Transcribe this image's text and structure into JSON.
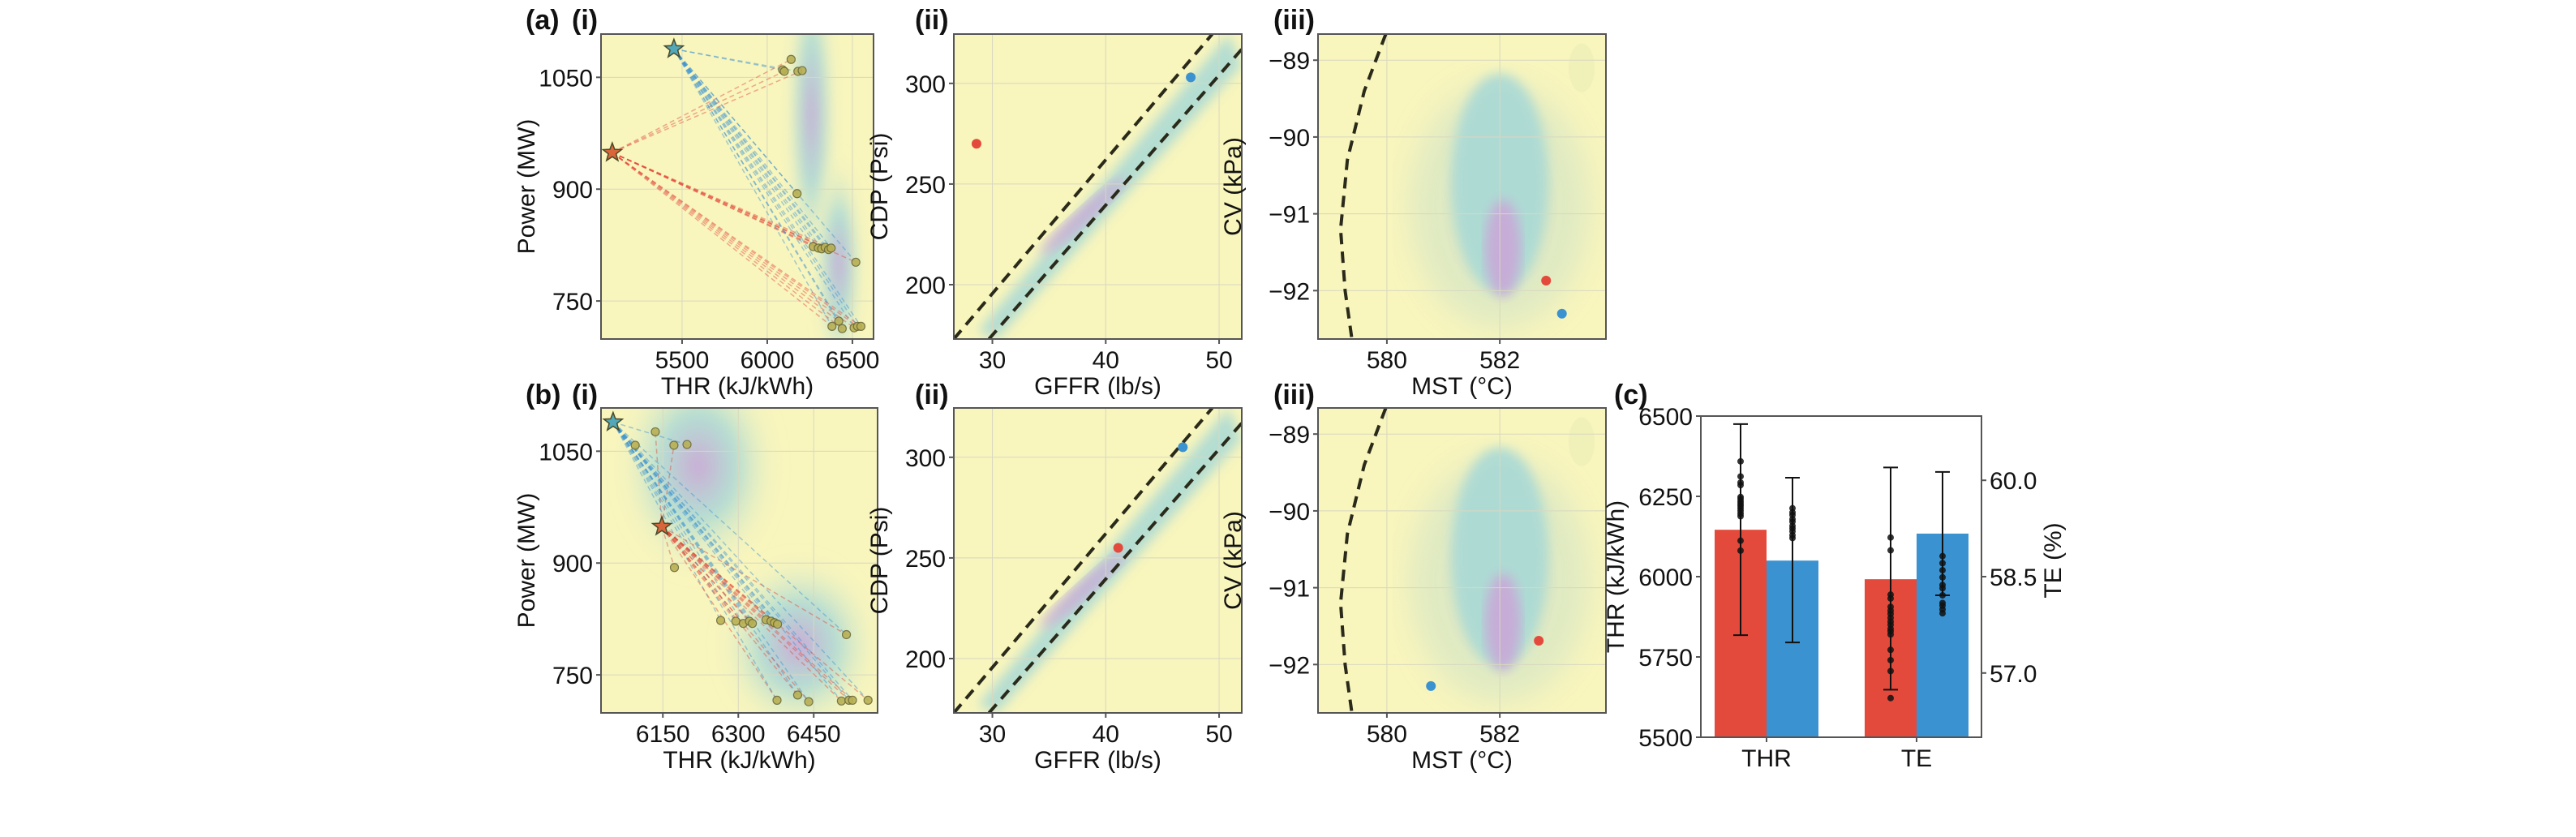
{
  "figure": {
    "panel_labels": {
      "a": "(a)",
      "b": "(b)",
      "c": "(c)",
      "i": "(i)",
      "ii": "(ii)",
      "iii": "(iii)"
    },
    "colors": {
      "red": "#e34a3b",
      "blue": "#3a92d1",
      "background_density_low": "#f8f5bd",
      "density_mid": "#a9d9d6",
      "density_high": "#c9a8d8",
      "boundary": "#2a2a1a"
    }
  },
  "chart_data": [
    {
      "id": "a-i",
      "type": "scatter",
      "panel": "(a) (i)",
      "xlabel": "THR (kJ/kWh)",
      "ylabel": "Power (MW)",
      "xlim": [
        5024,
        6624
      ],
      "ylim": [
        699,
        1108
      ],
      "xticks": [
        5500,
        6000,
        6500
      ],
      "yticks": [
        750,
        900,
        1050
      ],
      "grid": true,
      "stars": [
        {
          "series": "red",
          "x": 5090,
          "y": 949
        },
        {
          "series": "blue",
          "x": 5452,
          "y": 1088
        }
      ],
      "endpoints": [
        {
          "x": 6140,
          "y": 1074
        },
        {
          "x": 6090,
          "y": 1060
        },
        {
          "x": 6100,
          "y": 1058
        },
        {
          "x": 6180,
          "y": 1058
        },
        {
          "x": 6205,
          "y": 1059
        },
        {
          "x": 6175,
          "y": 894
        },
        {
          "x": 6270,
          "y": 823
        },
        {
          "x": 6300,
          "y": 821
        },
        {
          "x": 6320,
          "y": 820
        },
        {
          "x": 6340,
          "y": 822
        },
        {
          "x": 6360,
          "y": 819
        },
        {
          "x": 6375,
          "y": 821
        },
        {
          "x": 6520,
          "y": 802
        },
        {
          "x": 6420,
          "y": 723
        },
        {
          "x": 6380,
          "y": 716
        },
        {
          "x": 6440,
          "y": 713
        },
        {
          "x": 6510,
          "y": 714
        },
        {
          "x": 6530,
          "y": 716
        },
        {
          "x": 6550,
          "y": 716
        }
      ],
      "density": {
        "centers": [
          {
            "x": 6260,
            "y": 1000,
            "sx": 110,
            "sy": 160
          },
          {
            "x": 6420,
            "y": 800,
            "sx": 110,
            "sy": 110
          }
        ]
      }
    },
    {
      "id": "a-ii",
      "type": "scatter",
      "panel": "(a) (ii)",
      "xlabel": "GFFR (lb/s)",
      "ylabel": "CDP (Psi)",
      "xlim": [
        26.6,
        52.0
      ],
      "ylim": [
        173,
        324.5
      ],
      "xticks": [
        30,
        40,
        50
      ],
      "yticks": [
        200,
        250,
        300
      ],
      "grid": true,
      "points": [
        {
          "series": "red",
          "x": 28.6,
          "y": 270
        },
        {
          "series": "blue",
          "x": 47.5,
          "y": 303
        }
      ],
      "boundaries": [
        {
          "x": [
            26.6,
            49.4
          ],
          "y": [
            173,
            324.5
          ]
        },
        {
          "x": [
            29.7,
            52.0
          ],
          "y": [
            173,
            317
          ]
        }
      ]
    },
    {
      "id": "a-iii",
      "type": "scatter",
      "panel": "(a) (iii)",
      "xlabel": "MST (°C)",
      "ylabel": "CV (kPa)",
      "xlim": [
        578.78,
        583.88
      ],
      "ylim": [
        -92.63,
        -88.66
      ],
      "xticks": [
        580,
        582
      ],
      "xtick_labels": [
        "580",
        "582"
      ],
      "yticks": [
        -92,
        -91,
        -90,
        -89
      ],
      "ytick_labels": [
        "−92",
        "−91",
        "−90",
        "−89"
      ],
      "grid": true,
      "points": [
        {
          "series": "red",
          "x": 582.82,
          "y": -91.87
        },
        {
          "series": "blue",
          "x": 583.1,
          "y": -92.3
        }
      ],
      "boundary": {
        "x": [
          579.98,
          579.6,
          579.3,
          579.18,
          579.26,
          579.38
        ],
        "y": [
          -88.66,
          -89.4,
          -90.3,
          -91.2,
          -92.0,
          -92.63
        ]
      }
    },
    {
      "id": "b-i",
      "type": "scatter",
      "panel": "(b) (i)",
      "xlabel": "THR (kJ/kWh)",
      "ylabel": "Power (MW)",
      "xlim": [
        6027,
        6577
      ],
      "ylim": [
        699,
        1108
      ],
      "xticks": [
        6150,
        6300,
        6450
      ],
      "yticks": [
        750,
        900,
        1050
      ],
      "grid": true,
      "stars": [
        {
          "series": "red",
          "x": 6148,
          "y": 949
        },
        {
          "series": "blue",
          "x": 6051,
          "y": 1089
        }
      ],
      "endpoints": [
        {
          "x": 6135,
          "y": 1076
        },
        {
          "x": 6095,
          "y": 1058
        },
        {
          "x": 6172,
          "y": 1058
        },
        {
          "x": 6198,
          "y": 1059
        },
        {
          "x": 6173,
          "y": 894
        },
        {
          "x": 6265,
          "y": 823
        },
        {
          "x": 6295,
          "y": 822
        },
        {
          "x": 6310,
          "y": 819
        },
        {
          "x": 6322,
          "y": 822
        },
        {
          "x": 6328,
          "y": 819
        },
        {
          "x": 6355,
          "y": 824
        },
        {
          "x": 6365,
          "y": 822
        },
        {
          "x": 6372,
          "y": 820
        },
        {
          "x": 6378,
          "y": 818
        },
        {
          "x": 6515,
          "y": 804
        },
        {
          "x": 6377,
          "y": 716
        },
        {
          "x": 6418,
          "y": 723
        },
        {
          "x": 6440,
          "y": 714
        },
        {
          "x": 6505,
          "y": 715
        },
        {
          "x": 6520,
          "y": 716
        },
        {
          "x": 6527,
          "y": 716
        },
        {
          "x": 6558,
          "y": 716
        }
      ],
      "density": {
        "centers": [
          {
            "x": 6220,
            "y": 1030,
            "sx": 120,
            "sy": 110
          },
          {
            "x": 6420,
            "y": 790,
            "sx": 120,
            "sy": 90
          }
        ]
      }
    },
    {
      "id": "b-ii",
      "type": "scatter",
      "panel": "(b) (ii)",
      "xlabel": "GFFR (lb/s)",
      "ylabel": "CDP (Psi)",
      "xlim": [
        26.6,
        52.0
      ],
      "ylim": [
        173,
        324.5
      ],
      "xticks": [
        30,
        40,
        50
      ],
      "yticks": [
        200,
        250,
        300
      ],
      "grid": true,
      "points": [
        {
          "series": "red",
          "x": 41.1,
          "y": 255
        },
        {
          "series": "blue",
          "x": 46.8,
          "y": 305
        }
      ],
      "boundaries": [
        {
          "x": [
            26.6,
            49.4
          ],
          "y": [
            173,
            324.5
          ]
        },
        {
          "x": [
            29.7,
            52.0
          ],
          "y": [
            173,
            317
          ]
        }
      ]
    },
    {
      "id": "b-iii",
      "type": "scatter",
      "panel": "(b) (iii)",
      "xlabel": "MST (°C)",
      "ylabel": "CV (kPa)",
      "xlim": [
        578.78,
        583.88
      ],
      "ylim": [
        -92.63,
        -88.66
      ],
      "xticks": [
        580,
        582
      ],
      "xtick_labels": [
        "580",
        "582"
      ],
      "yticks": [
        -92,
        -91,
        -90,
        -89
      ],
      "ytick_labels": [
        "−92",
        "−91",
        "−90",
        "−89"
      ],
      "grid": true,
      "points": [
        {
          "series": "red",
          "x": 582.69,
          "y": -91.69
        },
        {
          "series": "blue",
          "x": 580.78,
          "y": -92.28
        }
      ],
      "boundary": {
        "x": [
          579.98,
          579.6,
          579.3,
          579.18,
          579.26,
          579.38
        ],
        "y": [
          -88.66,
          -89.4,
          -90.3,
          -91.2,
          -92.0,
          -92.63
        ]
      }
    },
    {
      "id": "c",
      "type": "bar",
      "panel": "(c)",
      "categories": [
        "THR",
        "TE"
      ],
      "ylabel": "THR (kJ/kWh)",
      "ylabel_right": "TE (%)",
      "ylim": [
        5500,
        6500
      ],
      "yticks": [
        5500,
        5750,
        6000,
        6250,
        6500
      ],
      "ylim_right": [
        56.0,
        61.0
      ],
      "yticks_right": [
        57.0,
        58.5,
        60.0
      ],
      "ytick_labels_right": [
        "57.0",
        "58.5",
        "60.0"
      ],
      "series": [
        {
          "name": "red",
          "axis": [
            "left",
            "right"
          ],
          "values": [
            6146,
            58.46
          ],
          "err_low": [
            5818,
            56.74
          ],
          "err_high": [
            6475,
            60.2
          ]
        },
        {
          "name": "blue",
          "axis": [
            "left",
            "right"
          ],
          "values": [
            6050,
            59.17
          ],
          "err_low": [
            5795,
            58.21
          ],
          "err_high": [
            6308,
            60.13
          ]
        }
      ],
      "samples": {
        "THR_red": [
          6359,
          6312,
          6293,
          6285,
          6248,
          6242,
          6234,
          6227,
          6220,
          6213,
          6205,
          6196,
          6188,
          6112,
          6081
        ],
        "THR_blue": [
          6213,
          6200,
          6192,
          6179,
          6171,
          6158,
          6150,
          6141,
          6129,
          6120
        ],
        "TE_red": [
          59.11,
          58.91,
          58.22,
          58.16,
          58.03,
          57.97,
          57.92,
          57.86,
          57.8,
          57.75,
          57.69,
          57.65,
          57.6,
          57.36,
          57.2,
          57.03,
          56.61
        ],
        "TE_blue": [
          58.82,
          58.71,
          58.6,
          58.49,
          58.37,
          58.32,
          58.21,
          58.09,
          58.05,
          57.99,
          57.93
        ]
      }
    }
  ]
}
